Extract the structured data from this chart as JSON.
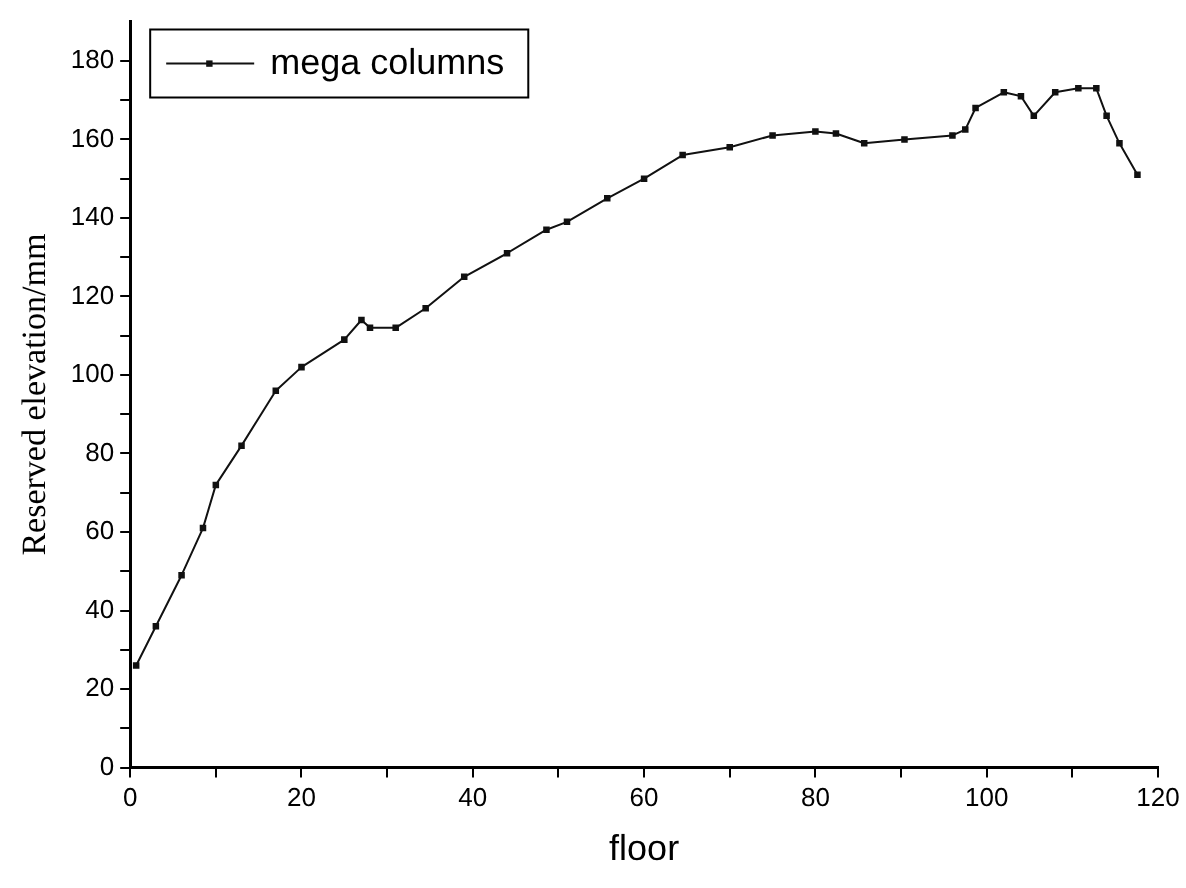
{
  "chart_data": {
    "type": "line",
    "xlabel": "floor",
    "ylabel": "Reserved elevation/mm",
    "xlim": [
      0,
      120
    ],
    "xticks": [
      0,
      20,
      40,
      60,
      80,
      100,
      120
    ],
    "ylim": [
      0,
      190
    ],
    "yticks": [
      0,
      20,
      40,
      60,
      80,
      100,
      120,
      140,
      160,
      180
    ],
    "legend": "top left",
    "marker": "square",
    "line_style": "solid",
    "grid": false,
    "series": [
      {
        "name": "mega columns",
        "color": "#111111",
        "x": [
          0.7,
          3,
          6,
          8.5,
          10,
          13,
          17,
          20,
          25,
          27,
          28,
          31,
          34.5,
          39,
          44,
          48.6,
          51,
          55.7,
          60,
          64.5,
          70,
          75,
          80,
          82.4,
          85.7,
          90.4,
          96,
          97.5,
          98.7,
          102,
          104,
          105.5,
          108,
          110.7,
          112.8,
          114,
          115.5,
          117.6
        ],
        "values": [
          26,
          36,
          49,
          61,
          72,
          82,
          96,
          102,
          109,
          114,
          112,
          112,
          117,
          125,
          131,
          137,
          139,
          145,
          150,
          156,
          158,
          161,
          162,
          161.5,
          159,
          160,
          161,
          162.5,
          168,
          172,
          171,
          166,
          172,
          173,
          173,
          166,
          159,
          151
        ]
      }
    ]
  }
}
